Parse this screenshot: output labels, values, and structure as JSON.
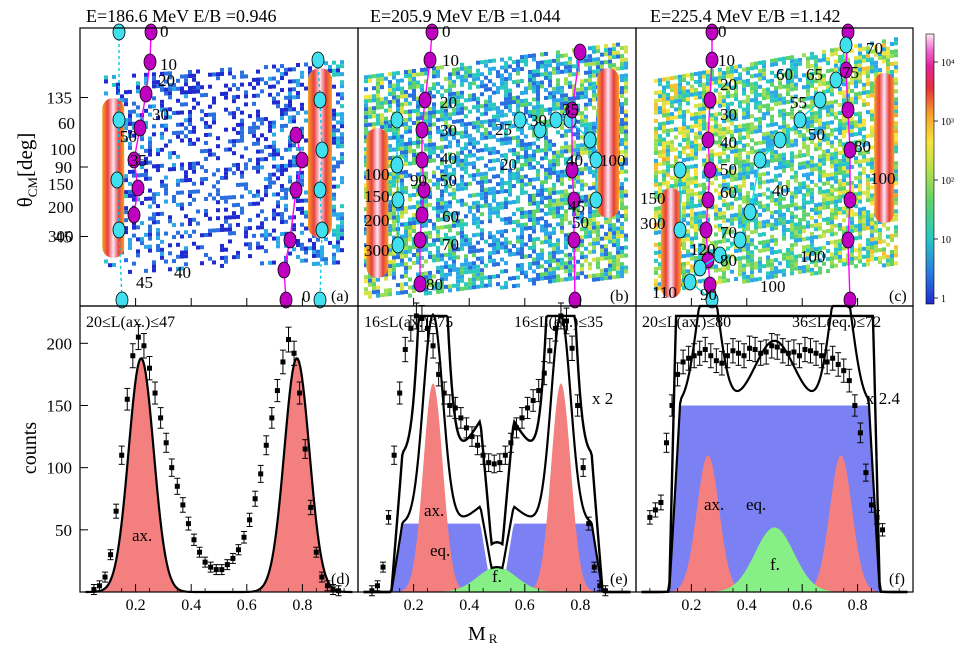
{
  "chart_data": {
    "type": "multi-panel: 2D mass-angle distributions (top) and mass distributions (bottom)",
    "xlabel_main": "M",
    "xlabel_sub": "R",
    "top_ylabel_main": "θ",
    "top_ylabel_sub": "CM",
    "top_ylabel_unit": "[deg]",
    "bottom_ylabel": "counts",
    "top_ylim": [
      0,
      180
    ],
    "top_yticks": [
      45,
      90,
      135
    ],
    "bottom_ylim": [
      0,
      230
    ],
    "bottom_yticks": [
      50,
      100,
      150,
      200
    ],
    "xlim": [
      0,
      1
    ],
    "xticks": [
      0.2,
      0.4,
      0.6,
      0.8
    ],
    "colorbar": {
      "scale": "log",
      "ticks": [
        "1",
        "10",
        "10²",
        "10³",
        "10⁴"
      ]
    },
    "panels_top": [
      {
        "id": "a",
        "label": "(a)",
        "title": "E=186.6 MeV   E/B =0.946",
        "cyan_labels": [
          "0"
        ],
        "magenta_labels": [
          "0",
          "10",
          "20",
          "30",
          "50",
          "35",
          "60",
          "100",
          "150",
          "200",
          "300",
          "45",
          "40"
        ]
      },
      {
        "id": "b",
        "label": "(b)",
        "title": "E=205.9 MeV   E/B =1.044",
        "cyan_labels": [
          "25",
          "30",
          "35",
          "20",
          "40",
          "45",
          "50",
          "100",
          "90",
          "150",
          "200",
          "300"
        ],
        "magenta_labels": [
          "0",
          "10",
          "20",
          "30",
          "40",
          "50",
          "60",
          "70",
          "80"
        ]
      },
      {
        "id": "c",
        "label": "(c)",
        "title": "E=225.4 MeV   E/B =1.142",
        "cyan_labels": [
          "60",
          "65",
          "55",
          "50",
          "40",
          "30",
          "80",
          "100",
          "110",
          "90",
          "100"
        ],
        "magenta_labels": [
          "0",
          "10",
          "20",
          "30",
          "40",
          "50",
          "60",
          "70",
          "75",
          "80",
          "120",
          "150",
          "300",
          "70"
        ]
      }
    ],
    "panels_bottom": [
      {
        "id": "d",
        "label": "(d)",
        "L_ax": "20≤L(ax.)≤47",
        "L_eq": "",
        "scale_label": "",
        "area_labels": {
          "ax": "ax."
        },
        "data_points": {
          "x": [
            0.05,
            0.07,
            0.09,
            0.11,
            0.13,
            0.15,
            0.17,
            0.19,
            0.21,
            0.23,
            0.25,
            0.27,
            0.29,
            0.31,
            0.33,
            0.35,
            0.37,
            0.39,
            0.41,
            0.43,
            0.45,
            0.47,
            0.49,
            0.51,
            0.53,
            0.55,
            0.57,
            0.59,
            0.61,
            0.63,
            0.65,
            0.67,
            0.69,
            0.71,
            0.73,
            0.75,
            0.77,
            0.79,
            0.81,
            0.83,
            0.85,
            0.87,
            0.89,
            0.91,
            0.93,
            0.95
          ],
          "y": [
            2,
            5,
            12,
            30,
            65,
            110,
            155,
            190,
            205,
            198,
            180,
            160,
            140,
            120,
            100,
            85,
            70,
            55,
            42,
            32,
            24,
            20,
            18,
            18,
            22,
            27,
            34,
            44,
            58,
            75,
            95,
            118,
            140,
            162,
            185,
            203,
            192,
            160,
            115,
            68,
            32,
            12,
            5,
            2,
            1,
            0
          ]
        },
        "series": [
          {
            "name": "ax.",
            "color": "#f47f7f",
            "type": "gaussian",
            "centers": [
              0.22,
              0.78
            ],
            "sigma": 0.045,
            "amplitude": 188
          },
          {
            "name": "total",
            "color": "#000000",
            "type": "line"
          }
        ]
      },
      {
        "id": "e",
        "label": "(e)",
        "L_ax": "16≤L(ax.)≤75",
        "L_eq": "16≤L(eq.)≤35",
        "scale_label": "x 2",
        "area_labels": {
          "ax": "ax.",
          "eq": "eq.",
          "f": "f."
        },
        "data_points": {
          "x": [
            0.05,
            0.07,
            0.09,
            0.11,
            0.13,
            0.15,
            0.17,
            0.19,
            0.21,
            0.23,
            0.25,
            0.27,
            0.29,
            0.31,
            0.33,
            0.35,
            0.37,
            0.39,
            0.41,
            0.43,
            0.45,
            0.47,
            0.49,
            0.51,
            0.53,
            0.55,
            0.57,
            0.59,
            0.61,
            0.63,
            0.65,
            0.67,
            0.69,
            0.71,
            0.73,
            0.75,
            0.77,
            0.79,
            0.81,
            0.83,
            0.85,
            0.87,
            0.89,
            0.91,
            0.93,
            0.95
          ],
          "y": [
            1,
            5,
            20,
            60,
            110,
            160,
            195,
            212,
            222,
            220,
            212,
            198,
            175,
            160,
            150,
            148,
            140,
            132,
            125,
            118,
            110,
            104,
            103,
            104,
            110,
            120,
            132,
            140,
            148,
            154,
            162,
            176,
            194,
            212,
            222,
            218,
            196,
            150,
            100,
            55,
            20,
            5,
            1,
            0,
            0,
            0
          ]
        },
        "series": [
          {
            "name": "ax.",
            "color": "#f47f7f",
            "type": "gaussian",
            "centers": [
              0.27,
              0.73
            ],
            "sigma": 0.035,
            "amplitude": 168
          },
          {
            "name": "eq.",
            "color": "#7b80f3",
            "type": "plateau",
            "segments": [
              [
                0.12,
                0.48,
                55
              ],
              [
                0.52,
                0.88,
                55
              ]
            ]
          },
          {
            "name": "f.",
            "color": "#86ef86",
            "type": "gaussian",
            "centers": [
              0.5
            ],
            "sigma": 0.07,
            "amplitude": 20
          },
          {
            "name": "total",
            "color": "#000000",
            "type": "line"
          }
        ]
      },
      {
        "id": "f",
        "label": "(f)",
        "L_ax": "20≤L(ax.)≤80",
        "L_eq": "36≤L(eq.)≤72",
        "scale_label": "x 2.4",
        "area_labels": {
          "ax": "ax.",
          "eq": "eq.",
          "f": "f."
        },
        "data_points": {
          "x": [
            0.05,
            0.07,
            0.09,
            0.11,
            0.13,
            0.15,
            0.17,
            0.19,
            0.21,
            0.23,
            0.25,
            0.27,
            0.29,
            0.31,
            0.33,
            0.35,
            0.37,
            0.39,
            0.41,
            0.43,
            0.45,
            0.47,
            0.49,
            0.51,
            0.53,
            0.55,
            0.57,
            0.59,
            0.61,
            0.63,
            0.65,
            0.67,
            0.69,
            0.71,
            0.73,
            0.75,
            0.77,
            0.79,
            0.81,
            0.83,
            0.85,
            0.87,
            0.89,
            0.91,
            0.93,
            0.95
          ],
          "y": [
            60,
            66,
            72,
            120,
            150,
            175,
            185,
            188,
            190,
            192,
            195,
            190,
            186,
            184,
            190,
            194,
            192,
            190,
            196,
            195,
            192,
            193,
            198,
            197,
            194,
            192,
            193,
            190,
            195,
            194,
            192,
            190,
            185,
            188,
            183,
            178,
            170,
            150,
            128,
            96,
            70,
            60,
            50,
            0,
            0,
            0
          ]
        },
        "series": [
          {
            "name": "ax.",
            "color": "#f47f7f",
            "type": "gaussian",
            "centers": [
              0.26,
              0.74
            ],
            "sigma": 0.04,
            "amplitude": 110
          },
          {
            "name": "eq.",
            "color": "#7b80f3",
            "type": "plateau",
            "segments": [
              [
                0.12,
                0.88,
                150
              ]
            ]
          },
          {
            "name": "f.",
            "color": "#86ef86",
            "type": "gaussian",
            "centers": [
              0.5
            ],
            "sigma": 0.07,
            "amplitude": 52
          },
          {
            "name": "total",
            "color": "#000000",
            "type": "line"
          }
        ]
      }
    ]
  }
}
